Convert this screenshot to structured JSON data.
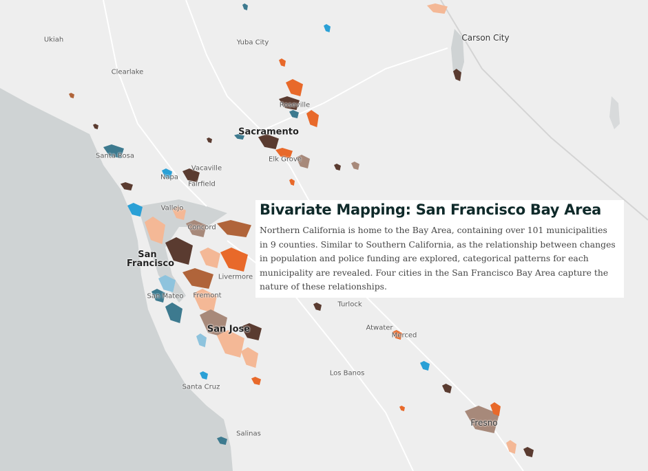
{
  "places": [
    "Ukiah",
    "Yuba City",
    "Carson City",
    "Clearlake",
    "Roseville",
    "Sacramento",
    "Santa Rosa",
    "Elk Grove",
    "Vacaville",
    "Napa",
    "Fairfield",
    "Vallejo",
    "Concord",
    "San Francisco",
    "Livermore",
    "San Mateo",
    "Fremont",
    "Turlock",
    "San Jose",
    "Atwater",
    "Merced",
    "Los Banos",
    "Santa Cruz",
    "Fresno",
    "Salinas"
  ],
  "card": {
    "title": "Bivariate Mapping: San Francisco Bay Area",
    "body": "Northern California is home to the Bay Area, containing over 101 municipalities in 9 counties. Similar to Southern California, as the relationship between changes in population and police funding are explored, categorical patterns for each municipality are revealed. Four cities in the San Francisco Bay Area capture the nature of these relationships."
  }
}
